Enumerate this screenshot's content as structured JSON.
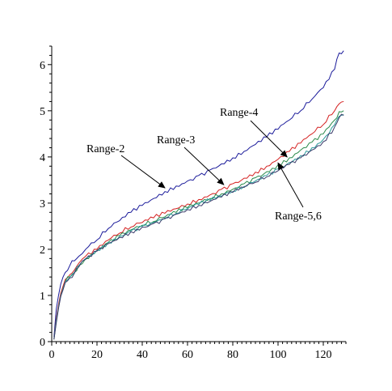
{
  "chart_data": {
    "type": "line",
    "title": "",
    "xlabel": "",
    "ylabel": "",
    "xlim": [
      0,
      130
    ],
    "ylim": [
      0,
      6.4
    ],
    "grid": false,
    "x_ticks": [
      0,
      20,
      40,
      60,
      80,
      100,
      120
    ],
    "y_ticks": [
      0,
      1,
      2,
      3,
      4,
      5,
      6
    ],
    "x_tick_labels": [
      "0",
      "20",
      "40",
      "60",
      "80",
      "100",
      "120"
    ],
    "y_tick_labels": [
      "0",
      "1",
      "2",
      "3",
      "4",
      "5",
      "6"
    ],
    "x": [
      1,
      2,
      3,
      4,
      5,
      6,
      8,
      10,
      12,
      15,
      20,
      25,
      30,
      35,
      40,
      45,
      50,
      55,
      60,
      65,
      70,
      75,
      80,
      85,
      90,
      95,
      100,
      105,
      110,
      115,
      120,
      125,
      127,
      129
    ],
    "series": [
      {
        "key": "range-2",
        "color": "#1a1a9a",
        "values": [
          0.1,
          0.7,
          1.0,
          1.25,
          1.4,
          1.5,
          1.65,
          1.75,
          1.85,
          2.0,
          2.2,
          2.45,
          2.62,
          2.8,
          2.95,
          3.1,
          3.25,
          3.37,
          3.48,
          3.6,
          3.72,
          3.85,
          3.98,
          4.12,
          4.27,
          4.43,
          4.6,
          4.8,
          5.0,
          5.25,
          5.5,
          5.9,
          6.25,
          6.3
        ]
      },
      {
        "key": "range-3",
        "color": "#d42020",
        "values": [
          0.05,
          0.5,
          0.8,
          1.05,
          1.2,
          1.35,
          1.45,
          1.55,
          1.7,
          1.85,
          2.0,
          2.2,
          2.35,
          2.48,
          2.58,
          2.68,
          2.78,
          2.88,
          2.98,
          3.08,
          3.18,
          3.3,
          3.42,
          3.54,
          3.67,
          3.8,
          3.95,
          4.12,
          4.3,
          4.5,
          4.7,
          5.0,
          5.15,
          5.2
        ]
      },
      {
        "key": "range-4",
        "color": "#2a8a4a",
        "values": [
          0.05,
          0.45,
          0.75,
          1.0,
          1.15,
          1.3,
          1.4,
          1.5,
          1.65,
          1.8,
          1.98,
          2.15,
          2.3,
          2.42,
          2.52,
          2.6,
          2.7,
          2.8,
          2.9,
          3.0,
          3.1,
          3.2,
          3.3,
          3.42,
          3.55,
          3.68,
          3.83,
          3.98,
          4.15,
          4.32,
          4.5,
          4.8,
          4.98,
          5.0
        ]
      },
      {
        "key": "range-5",
        "color": "#2a9a9a",
        "values": [
          0.05,
          0.45,
          0.75,
          1.0,
          1.15,
          1.3,
          1.4,
          1.5,
          1.65,
          1.8,
          1.98,
          2.15,
          2.28,
          2.4,
          2.5,
          2.58,
          2.68,
          2.78,
          2.88,
          2.97,
          3.06,
          3.15,
          3.25,
          3.36,
          3.48,
          3.6,
          3.74,
          3.88,
          4.03,
          4.2,
          4.38,
          4.7,
          4.88,
          4.92
        ]
      },
      {
        "key": "range-6",
        "color": "#3a3a6a",
        "values": [
          0.05,
          0.4,
          0.72,
          0.98,
          1.12,
          1.28,
          1.38,
          1.48,
          1.62,
          1.78,
          1.96,
          2.12,
          2.26,
          2.38,
          2.48,
          2.56,
          2.66,
          2.76,
          2.86,
          2.95,
          3.04,
          3.13,
          3.23,
          3.34,
          3.45,
          3.57,
          3.7,
          3.84,
          3.98,
          4.15,
          4.33,
          4.65,
          4.85,
          4.9
        ]
      }
    ],
    "annotations": [
      {
        "key": "range-2",
        "text": "Range-2",
        "tip": [
          50,
          3.33
        ]
      },
      {
        "key": "range-3",
        "text": "Range-3",
        "tip": [
          76,
          3.4
        ]
      },
      {
        "key": "range-4",
        "text": "Range-4",
        "tip": [
          104,
          4.0
        ]
      },
      {
        "key": "range-56",
        "text": "Range-5,6",
        "tip": [
          100,
          3.87
        ]
      }
    ]
  }
}
